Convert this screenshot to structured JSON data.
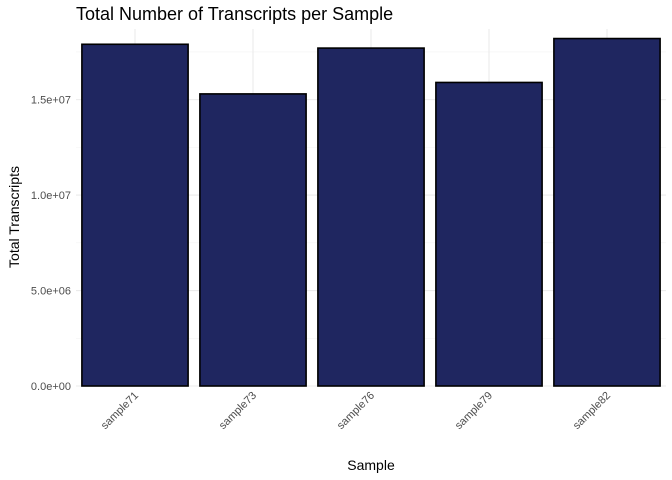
{
  "chart_data": {
    "type": "bar",
    "title": "Total Number of Transcripts per Sample",
    "xlabel": "Sample",
    "ylabel": "Total Transcripts",
    "categories": [
      "sample71",
      "sample73",
      "sample76",
      "sample79",
      "sample82"
    ],
    "values": [
      17900000,
      15300000,
      17700000,
      15900000,
      18200000
    ],
    "ylim": [
      0,
      18700000
    ],
    "yticks": [
      0,
      5000000,
      10000000,
      15000000
    ],
    "ytick_labels": [
      "0.0e+00",
      "5.0e+06",
      "1.0e+07",
      "1.5e+07"
    ],
    "x_tick_rotation": "45 degrees",
    "bar_fill": "#1f2660",
    "bar_outline": "#000000",
    "grid": true,
    "legend": "none"
  }
}
